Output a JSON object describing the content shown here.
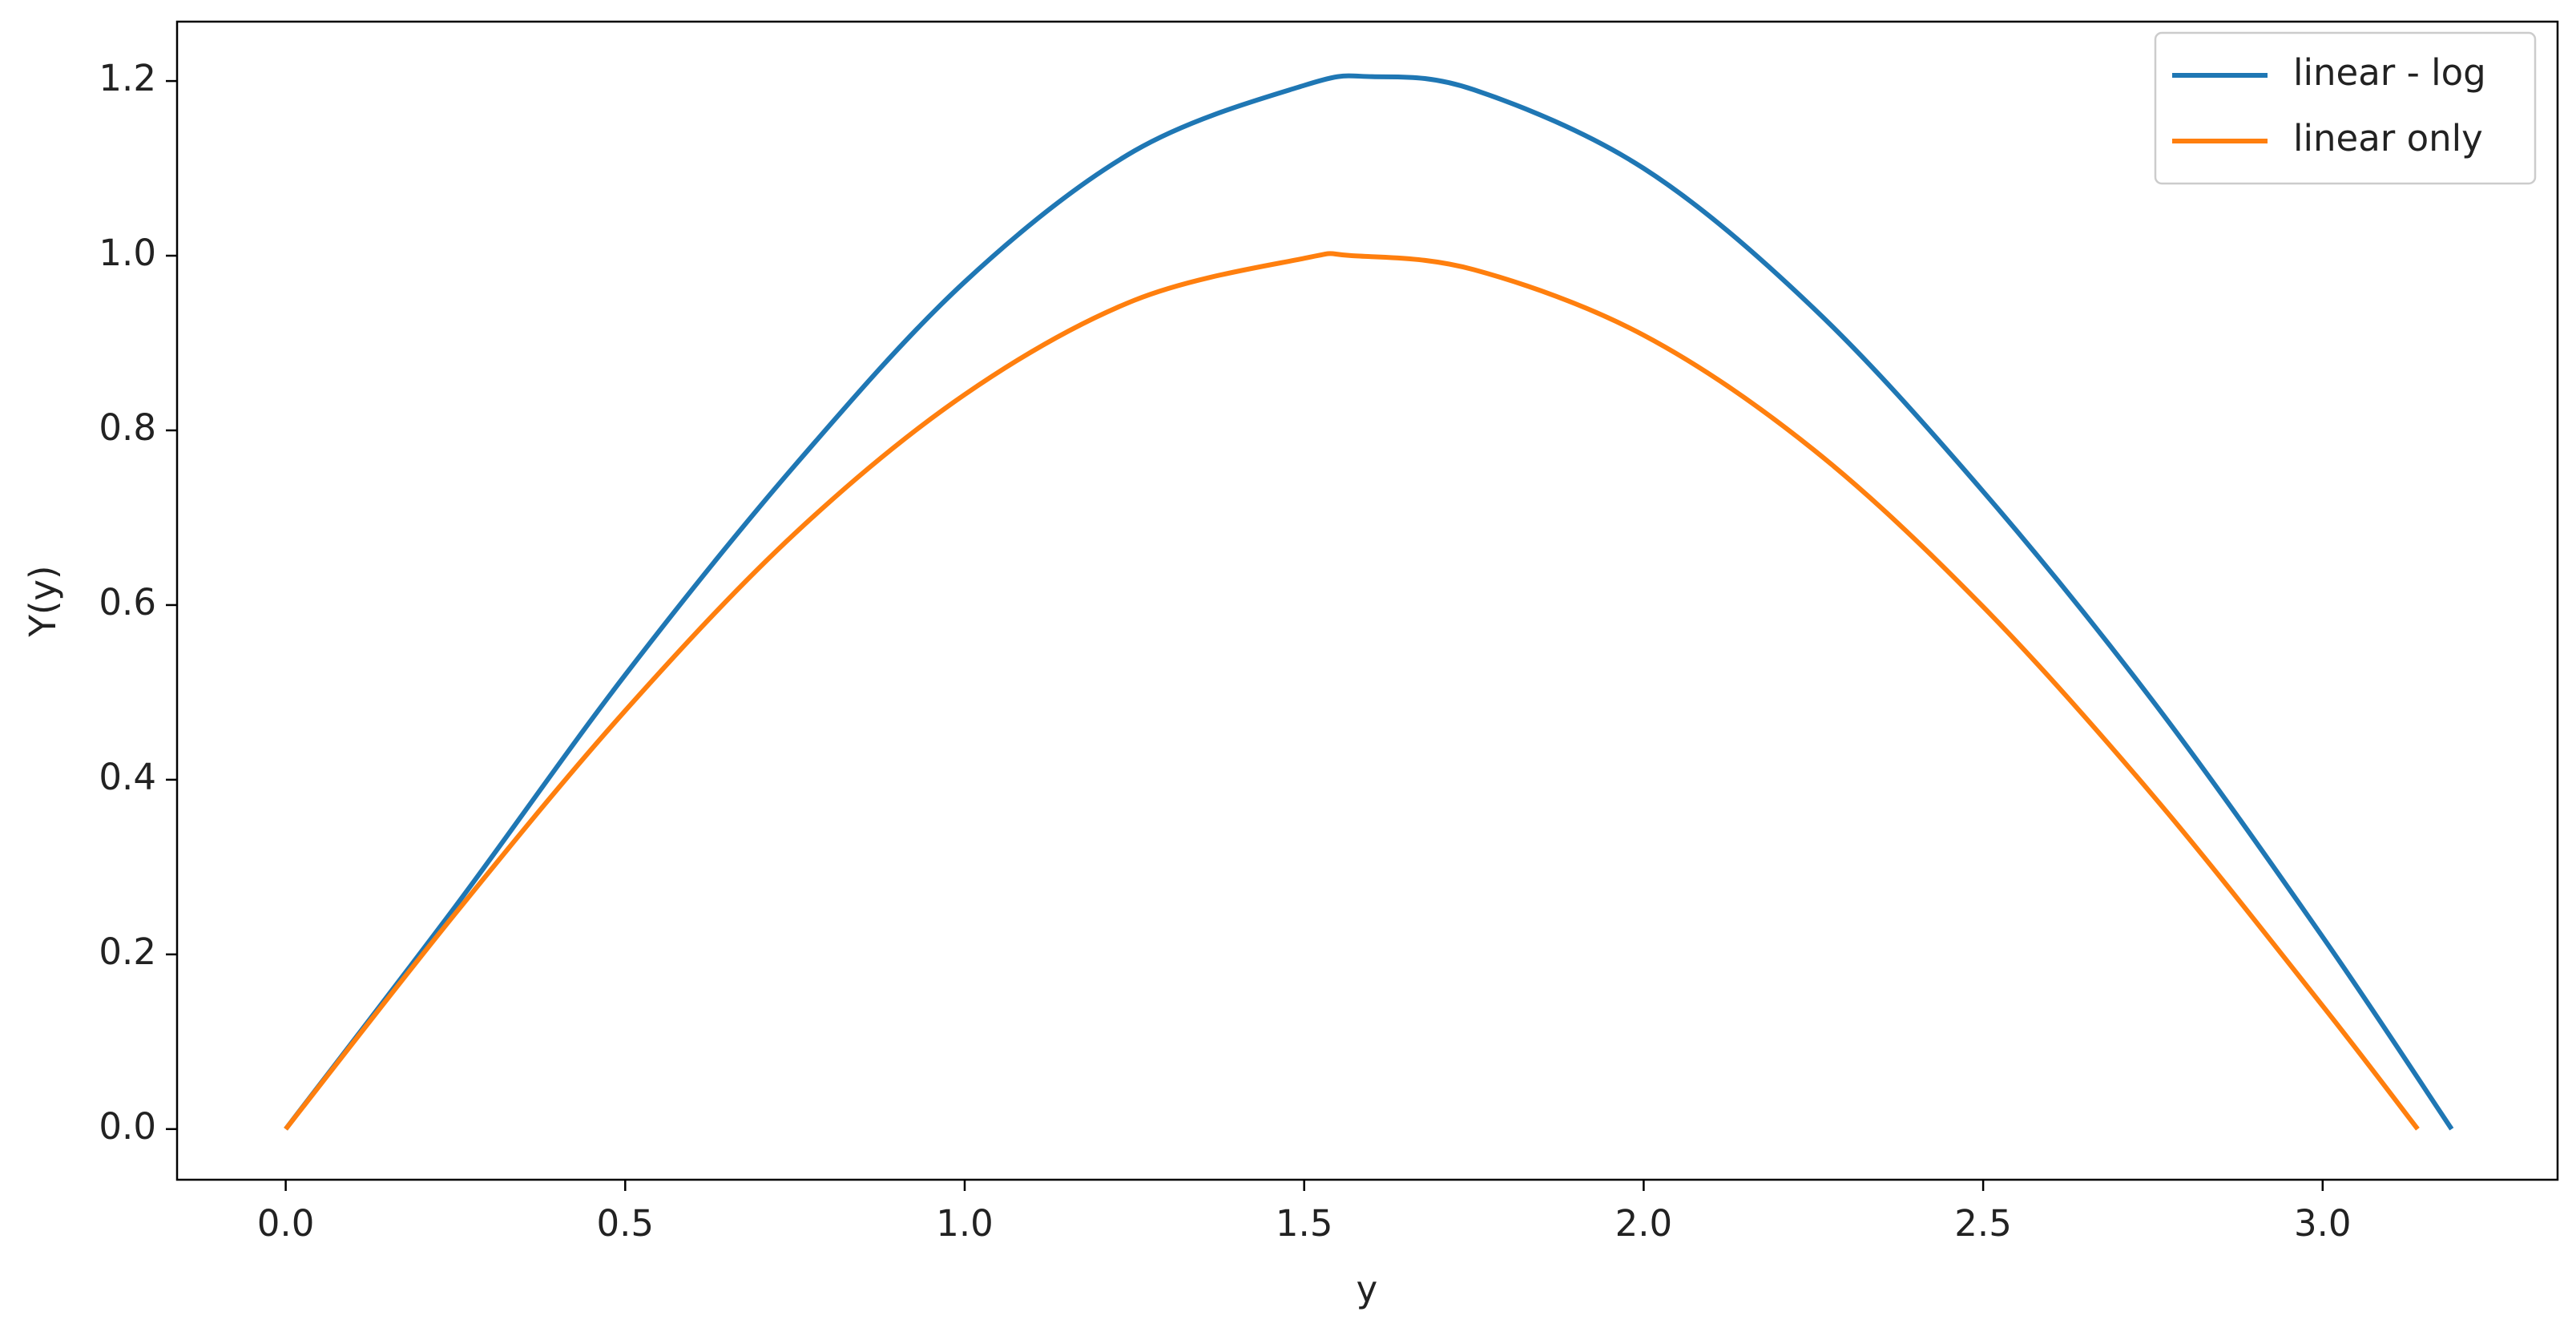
{
  "chart_data": {
    "type": "line",
    "xlabel": "y",
    "ylabel": "Y(y)",
    "xlim": [
      -0.16,
      3.346
    ],
    "ylim": [
      -0.058,
      1.268
    ],
    "xticks": [
      {
        "value": 0,
        "label": "0.0"
      },
      0.5,
      {
        "value": 1,
        "label": "1.0"
      },
      1.5,
      {
        "value": 2,
        "label": "2.0"
      },
      2.5,
      {
        "value": 3,
        "label": "3.0"
      }
    ],
    "yticks": [
      {
        "value": 0,
        "label": "0.0"
      },
      0.2,
      0.4,
      0.6,
      0.8,
      {
        "value": 1,
        "label": "1.0"
      },
      1.2
    ],
    "legend": "upper right",
    "series": [
      {
        "name": "linear - log",
        "color": "#1f77b4",
        "x": [
          0,
          0.25,
          0.5,
          0.75,
          1.0,
          1.25,
          1.5,
          1.6,
          1.75,
          2.0,
          2.25,
          2.5,
          2.75,
          3.0,
          3.19
        ],
        "values": [
          0,
          0.255,
          0.52,
          0.76,
          0.97,
          1.12,
          1.195,
          1.205,
          1.19,
          1.1,
          0.94,
          0.73,
          0.49,
          0.22,
          0
        ]
      },
      {
        "name": "linear only",
        "color": "#ff7f0e",
        "x": [
          0,
          0.25,
          0.5,
          0.75,
          1.0,
          1.25,
          1.5,
          1.57,
          1.75,
          2.0,
          2.25,
          2.5,
          2.75,
          3.0,
          3.14
        ],
        "values": [
          0,
          0.247,
          0.479,
          0.682,
          0.841,
          0.949,
          0.997,
          1.0,
          0.984,
          0.909,
          0.778,
          0.598,
          0.382,
          0.141,
          0
        ]
      }
    ]
  }
}
